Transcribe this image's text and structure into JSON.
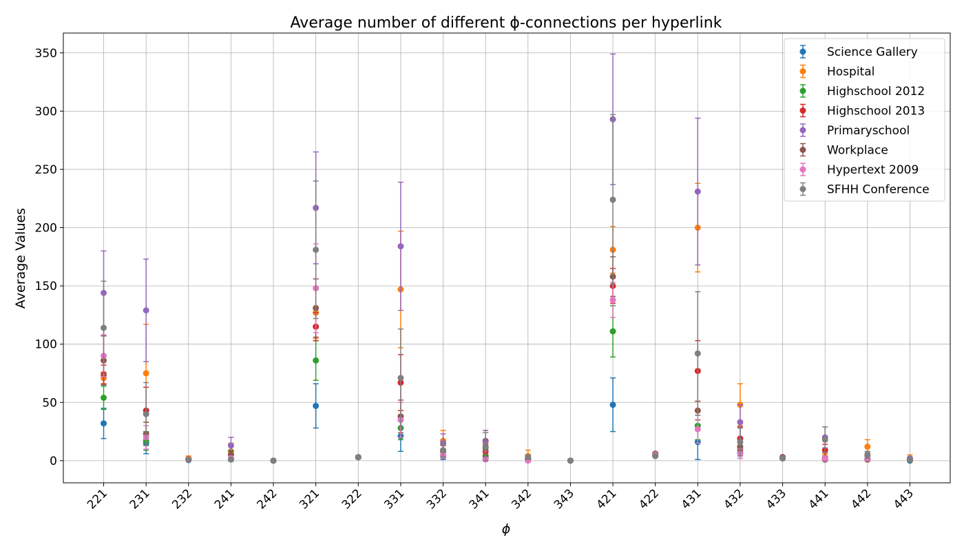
{
  "chart_data": {
    "type": "errorbar",
    "title": "Average number of different ϕ-connections per hyperlink",
    "xlabel": "ϕ",
    "ylabel": "Average Values",
    "categories": [
      "221",
      "231",
      "232",
      "241",
      "242",
      "321",
      "322",
      "331",
      "332",
      "341",
      "342",
      "343",
      "421",
      "422",
      "431",
      "432",
      "433",
      "441",
      "442",
      "443"
    ],
    "ylim": [
      -19,
      367
    ],
    "yticks": [
      0,
      50,
      100,
      150,
      200,
      250,
      300,
      350
    ],
    "grid": true,
    "legend": "upper right",
    "series": [
      {
        "name": "Science Gallery",
        "color": "#1f77b4",
        "values": [
          32,
          15,
          0.5,
          1,
          0,
          47,
          3,
          21,
          4,
          2,
          1,
          0,
          48,
          4,
          16,
          7,
          2,
          1,
          1,
          0
        ],
        "errors": [
          13,
          9,
          0.5,
          1,
          0,
          19,
          1,
          13,
          3,
          2,
          1,
          0,
          23,
          1,
          15,
          5,
          1,
          1,
          1,
          0.5
        ]
      },
      {
        "name": "Hospital",
        "color": "#ff7f0e",
        "values": [
          71,
          75,
          2,
          8,
          0,
          127,
          3,
          147,
          17,
          16,
          4,
          0,
          181,
          5,
          200,
          48,
          3,
          3,
          12,
          2
        ],
        "errors": [
          5,
          42,
          2,
          7,
          0,
          22,
          1,
          50,
          9,
          10,
          5,
          0,
          20,
          1,
          38,
          18,
          1,
          3,
          6,
          3
        ]
      },
      {
        "name": "Highschool 2012",
        "color": "#2ca02c",
        "values": [
          54,
          17,
          1,
          5,
          0,
          86,
          3,
          28,
          8,
          4,
          1,
          0,
          111,
          5,
          30,
          10,
          2,
          2,
          1,
          1
        ],
        "errors": [
          10,
          8,
          1,
          4,
          0,
          17,
          1,
          10,
          5,
          3,
          1,
          0,
          22,
          1,
          12,
          5,
          1,
          2,
          1,
          1
        ]
      },
      {
        "name": "Highschool 2013",
        "color": "#d62728",
        "values": [
          74,
          43,
          1,
          5,
          0,
          115,
          3,
          67,
          9,
          8,
          1,
          0,
          150,
          6,
          77,
          19,
          3,
          9,
          1,
          1
        ],
        "errors": [
          8,
          20,
          1,
          3,
          0,
          12,
          1,
          24,
          5,
          6,
          1,
          0,
          15,
          1,
          26,
          10,
          1,
          5,
          1,
          1
        ]
      },
      {
        "name": "Primaryschool",
        "color": "#9467bd",
        "values": [
          144,
          129,
          1,
          13,
          0,
          217,
          3,
          184,
          15,
          17,
          2,
          0,
          293,
          5,
          231,
          33,
          3,
          20,
          4,
          2
        ],
        "errors": [
          36,
          44,
          1,
          7,
          0,
          48,
          1,
          55,
          8,
          9,
          2,
          0,
          56,
          1,
          63,
          15,
          1,
          9,
          3,
          1
        ]
      },
      {
        "name": "Workplace",
        "color": "#8c564b",
        "values": [
          86,
          23,
          1,
          5,
          0,
          131,
          3,
          38,
          8,
          11,
          2,
          0,
          158,
          6,
          43,
          12,
          3,
          1,
          1,
          1
        ],
        "errors": [
          21,
          10,
          1,
          3,
          0,
          25,
          1,
          14,
          5,
          7,
          2,
          0,
          17,
          1,
          8,
          6,
          1,
          1,
          1,
          1
        ]
      },
      {
        "name": "Hypertext 2009",
        "color": "#e377c2",
        "values": [
          90,
          20,
          1,
          2,
          0,
          148,
          3,
          35,
          5,
          1,
          0,
          0,
          138,
          5,
          27,
          6,
          2,
          2,
          2,
          1
        ],
        "errors": [
          18,
          10,
          1,
          2,
          0,
          38,
          1,
          15,
          3,
          1,
          0,
          0,
          15,
          1,
          12,
          4,
          1,
          2,
          2,
          1
        ]
      },
      {
        "name": "SFHH Conference",
        "color": "#7f7f7f",
        "values": [
          114,
          40,
          1,
          1,
          0,
          181,
          3,
          71,
          9,
          12,
          3,
          0,
          224,
          4,
          92,
          16,
          2,
          18,
          5,
          1
        ],
        "errors": [
          40,
          27,
          1,
          1,
          0,
          59,
          1,
          42,
          6,
          12,
          2,
          0,
          73,
          1,
          53,
          12,
          1,
          11,
          3,
          1
        ]
      }
    ]
  }
}
